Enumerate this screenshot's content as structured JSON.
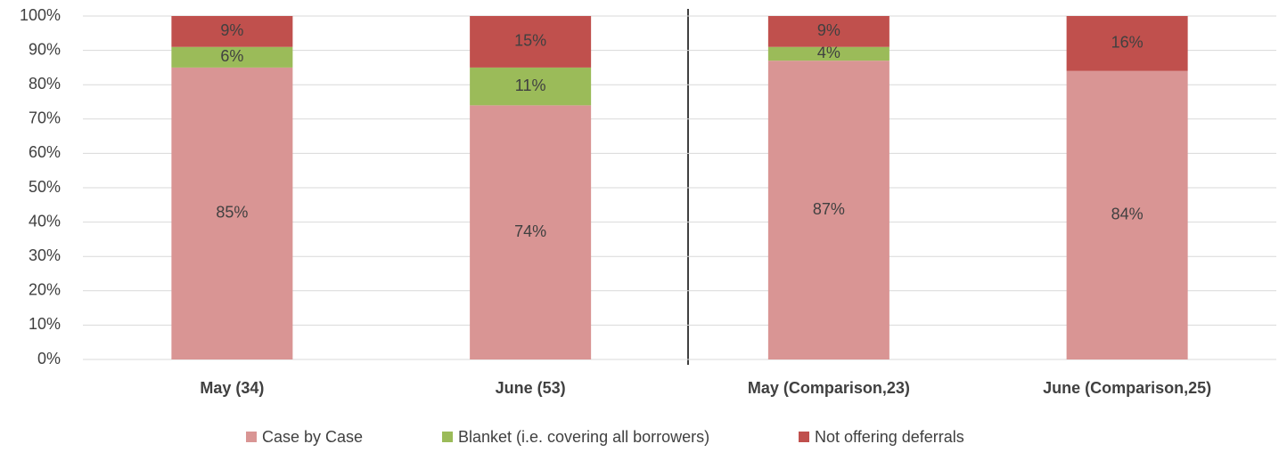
{
  "chart_data": {
    "type": "stacked_bar",
    "categories": [
      "May (34)",
      "June (53)",
      "May (Comparison,23)",
      "June (Comparison,25)"
    ],
    "series": [
      {
        "name": "Case by Case",
        "color": "#d99594",
        "values": [
          85,
          74,
          87,
          84
        ],
        "value_labels": [
          "85%",
          "74%",
          "87%",
          "84%"
        ]
      },
      {
        "name": "Blanket (i.e. covering all borrowers)",
        "color": "#9bbb59",
        "values": [
          6,
          11,
          4,
          null
        ],
        "value_labels": [
          "6%",
          "11%",
          "4%",
          null
        ]
      },
      {
        "name": "Not offering deferrals",
        "color": "#c0504d",
        "values": [
          9,
          15,
          9,
          16
        ],
        "value_labels": [
          "9%",
          "15%",
          "9%",
          "16%"
        ]
      }
    ],
    "ylim": [
      0,
      100
    ],
    "yticks": [
      {
        "value": 0,
        "label": "0%"
      },
      {
        "value": 10,
        "label": "10%"
      },
      {
        "value": 20,
        "label": "20%"
      },
      {
        "value": 30,
        "label": "30%"
      },
      {
        "value": 40,
        "label": "40%"
      },
      {
        "value": 50,
        "label": "50%"
      },
      {
        "value": 60,
        "label": "60%"
      },
      {
        "value": 70,
        "label": "70%"
      },
      {
        "value": 80,
        "label": "80%"
      },
      {
        "value": 90,
        "label": "90%"
      },
      {
        "value": 100,
        "label": "100%"
      }
    ],
    "grid": true,
    "legend": "bottom"
  }
}
